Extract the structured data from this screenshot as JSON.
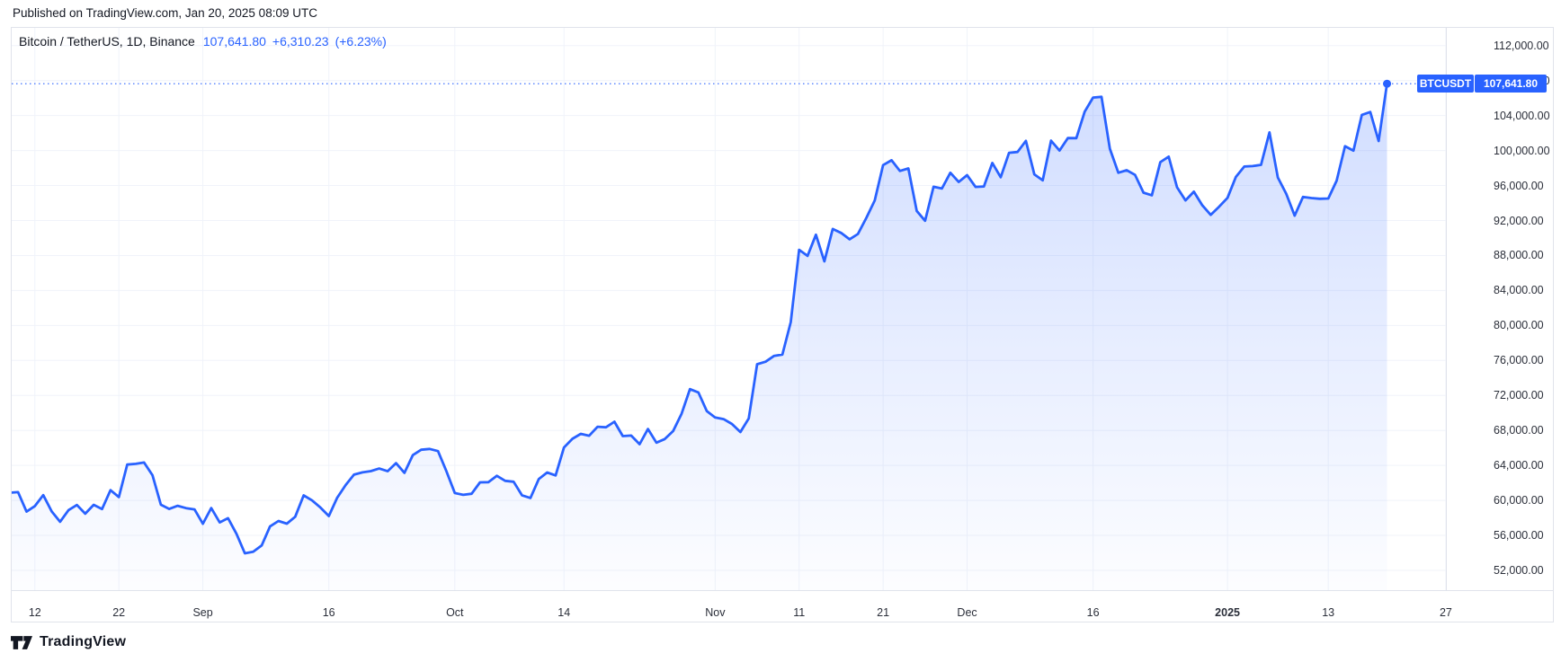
{
  "published": {
    "text": "Published on TradingView.com, Jan 20, 2025 08:09 UTC"
  },
  "legend": {
    "title": "Bitcoin / TetherUS, 1D, Binance",
    "price": "107,641.80",
    "change": "+6,310.23",
    "change_pct": "(+6.23%)"
  },
  "price_tag": {
    "symbol": "BTCUSDT",
    "price": "107,641.80"
  },
  "footer": {
    "brand": "TradingView"
  },
  "colors": {
    "accent": "#2962ff",
    "line": "#2962ff",
    "area_top": "rgba(41,98,255,0.24)",
    "area_bottom": "rgba(41,98,255,0.01)",
    "grid": "#f0f3fa",
    "frame_border": "#e0e3eb",
    "axis_text": "#2a2e39",
    "tag_bg": "#2962ff",
    "tag_text": "#ffffff",
    "marker": "#2962ff"
  },
  "chart_data": {
    "type": "area",
    "title": "Bitcoin / TetherUS, 1D, Binance",
    "symbol": "BTCUSDT",
    "exchange": "Binance",
    "interval": "1D",
    "last_price": 107641.8,
    "change": 6310.23,
    "change_pct": 6.23,
    "start_date": "2024-08-08",
    "end_date": "2025-01-20",
    "ylim": [
      49740,
      114030
    ],
    "grid": true,
    "y_ticks": [
      {
        "value": 112000,
        "label": "112,000.00"
      },
      {
        "value": 108000,
        "label": "108,000.00"
      },
      {
        "value": 104000,
        "label": "104,000.00"
      },
      {
        "value": 100000,
        "label": "100,000.00"
      },
      {
        "value": 96000,
        "label": "96,000.00"
      },
      {
        "value": 92000,
        "label": "92,000.00"
      },
      {
        "value": 88000,
        "label": "88,000.00"
      },
      {
        "value": 84000,
        "label": "84,000.00"
      },
      {
        "value": 80000,
        "label": "80,000.00"
      },
      {
        "value": 76000,
        "label": "76,000.00"
      },
      {
        "value": 72000,
        "label": "72,000.00"
      },
      {
        "value": 68000,
        "label": "68,000.00"
      },
      {
        "value": 64000,
        "label": "64,000.00"
      },
      {
        "value": 60000,
        "label": "60,000.00"
      },
      {
        "value": 56000,
        "label": "56,000.00"
      },
      {
        "value": 52000,
        "label": "52,000.00"
      }
    ],
    "x_ticks": [
      {
        "day": 4,
        "label": "12",
        "bold": false
      },
      {
        "day": 14,
        "label": "22",
        "bold": false
      },
      {
        "day": 24,
        "label": "Sep",
        "bold": false
      },
      {
        "day": 39,
        "label": "16",
        "bold": false
      },
      {
        "day": 54,
        "label": "Oct",
        "bold": false
      },
      {
        "day": 67,
        "label": "14",
        "bold": false
      },
      {
        "day": 85,
        "label": "Nov",
        "bold": false
      },
      {
        "day": 95,
        "label": "11",
        "bold": false
      },
      {
        "day": 105,
        "label": "21",
        "bold": false
      },
      {
        "day": 115,
        "label": "Dec",
        "bold": false
      },
      {
        "day": 130,
        "label": "16",
        "bold": false
      },
      {
        "day": 146,
        "label": "2025",
        "bold": true
      },
      {
        "day": 158,
        "label": "13",
        "bold": false
      },
      {
        "day": 172,
        "label": "27",
        "bold": false
      }
    ],
    "series": [
      {
        "name": "BTCUSDT daily close",
        "closes": [
          61710,
          60880,
          60945,
          58719,
          59354,
          60609,
          58737,
          57560,
          58894,
          59478,
          58483,
          59493,
          59012,
          61175,
          60382,
          64094,
          64178,
          64333,
          62880,
          59504,
          59027,
          59388,
          59119,
          58969,
          57325,
          59132,
          57487,
          57971,
          56180,
          53948,
          54139,
          54841,
          57019,
          57648,
          57343,
          58132,
          60571,
          60005,
          59182,
          58217,
          60313,
          61759,
          62947,
          63201,
          63349,
          63648,
          63339,
          64262,
          63151,
          65181,
          65790,
          65887,
          65635,
          63329,
          60837,
          60632,
          60759,
          62067,
          62089,
          62818,
          62236,
          62131,
          60582,
          60274,
          62445,
          63193,
          62851,
          66046,
          67041,
          67612,
          67399,
          68418,
          68362,
          69001,
          67355,
          67411,
          66432,
          68161,
          66600,
          67014,
          67929,
          69910,
          72720,
          72339,
          70215,
          69482,
          69289,
          68741,
          67811,
          69372,
          75571,
          75857,
          76509,
          76677,
          80370,
          88647,
          87952,
          90375,
          87325,
          91032,
          90586,
          89855,
          90464,
          92310,
          94286,
          98332,
          98892,
          97672,
          97952,
          93102,
          91965,
          95863,
          95652,
          97461,
          96407,
          97185,
          95840,
          95897,
          98587,
          96945,
          99740,
          99831,
          101109,
          97276,
          96593,
          101126,
          100004,
          101424,
          101417,
          104448,
          106058,
          106140,
          100203,
          97461,
          97756,
          97215,
          95186,
          94881,
          98676,
          99298,
          95795,
          94296,
          95300,
          93738,
          92643,
          93576,
          94591,
          96984,
          98174,
          98220,
          98363,
          102078,
          96922,
          95043,
          92552,
          94701,
          94566,
          94488,
          94516,
          96560,
          100497,
          99987,
          104077,
          104409,
          101089,
          107641.8
        ]
      }
    ]
  }
}
